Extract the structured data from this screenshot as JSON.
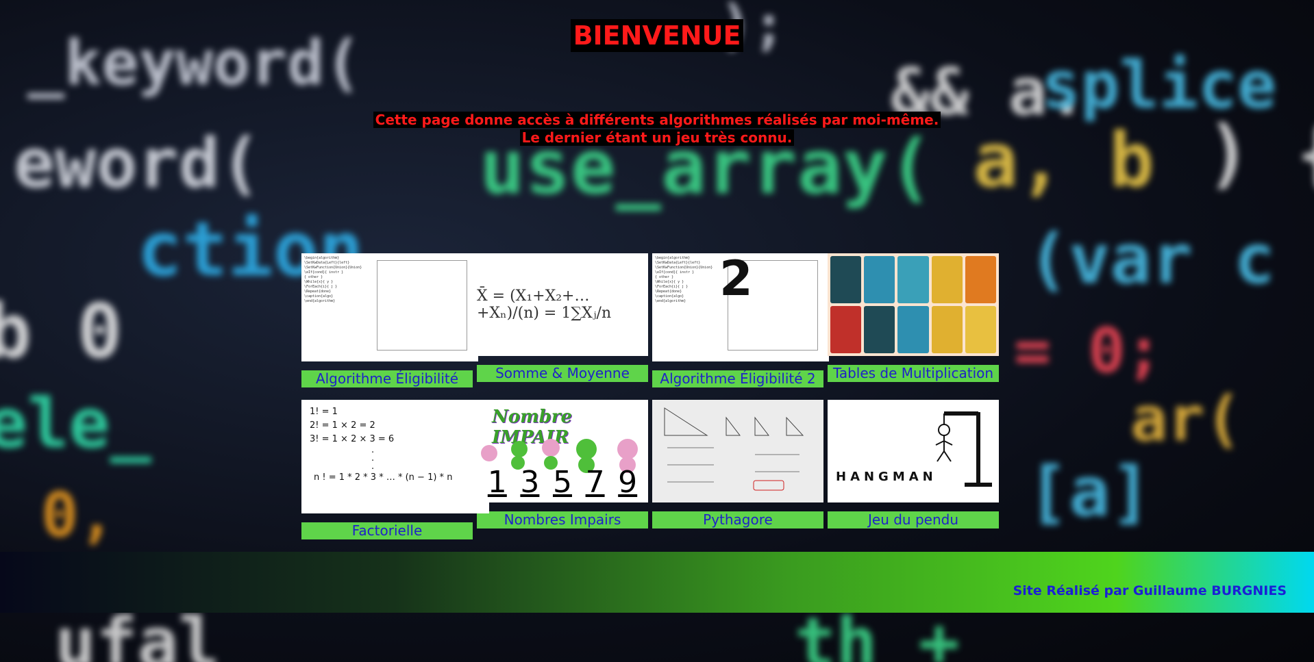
{
  "header": {
    "title": "BIENVENUE",
    "intro_line1": "Cette page donne accès à différents algorithmes réalisés par moi-même.",
    "intro_line2": "Le dernier étant un jeu très connu."
  },
  "cards": [
    {
      "label": "Algorithme Éligibilité",
      "icon": "pseudocode-thumbnail"
    },
    {
      "label": "Somme & Moyenne",
      "icon": "mean-formula-thumbnail"
    },
    {
      "label": "Algorithme Éligibilité 2",
      "icon": "pseudocode-2-thumbnail"
    },
    {
      "label": "Tables de Multiplication",
      "icon": "multiplication-tables-thumbnail"
    },
    {
      "label": "Factorielle",
      "icon": "factorial-thumbnail"
    },
    {
      "label": "Nombres Impairs",
      "icon": "odd-numbers-thumbnail"
    },
    {
      "label": "Pythagore",
      "icon": "pythagore-thumbnail"
    },
    {
      "label": "Jeu du pendu",
      "icon": "hangman-thumbnail"
    }
  ],
  "thumbs": {
    "mean_formula": "X̄ = (X₁+X₂+…+Xₙ)/(n) = 1∑Xⱼ/n",
    "big_digit": "2",
    "factorial_lines": [
      "1! = 1",
      "2! = 1 × 2 = 2",
      "3! = 1 × 2 × 3 = 6",
      ".",
      ".",
      ".",
      "n ! = 1 * 2 * 3 * … * (n − 1) * n"
    ],
    "odd_title": "Nombre IMPAIR",
    "odd_numbers": [
      "1",
      "3",
      "5",
      "7",
      "9"
    ],
    "hangman_word": "HANGMAN"
  },
  "footer": {
    "credit": "Site Réalisé par Guillaume BURGNIES"
  },
  "colors": {
    "title_red": "#ff1a1a",
    "label_green": "#5fd44a",
    "label_blue": "#1f22c8",
    "footer_text_blue": "#1a1fd6"
  }
}
